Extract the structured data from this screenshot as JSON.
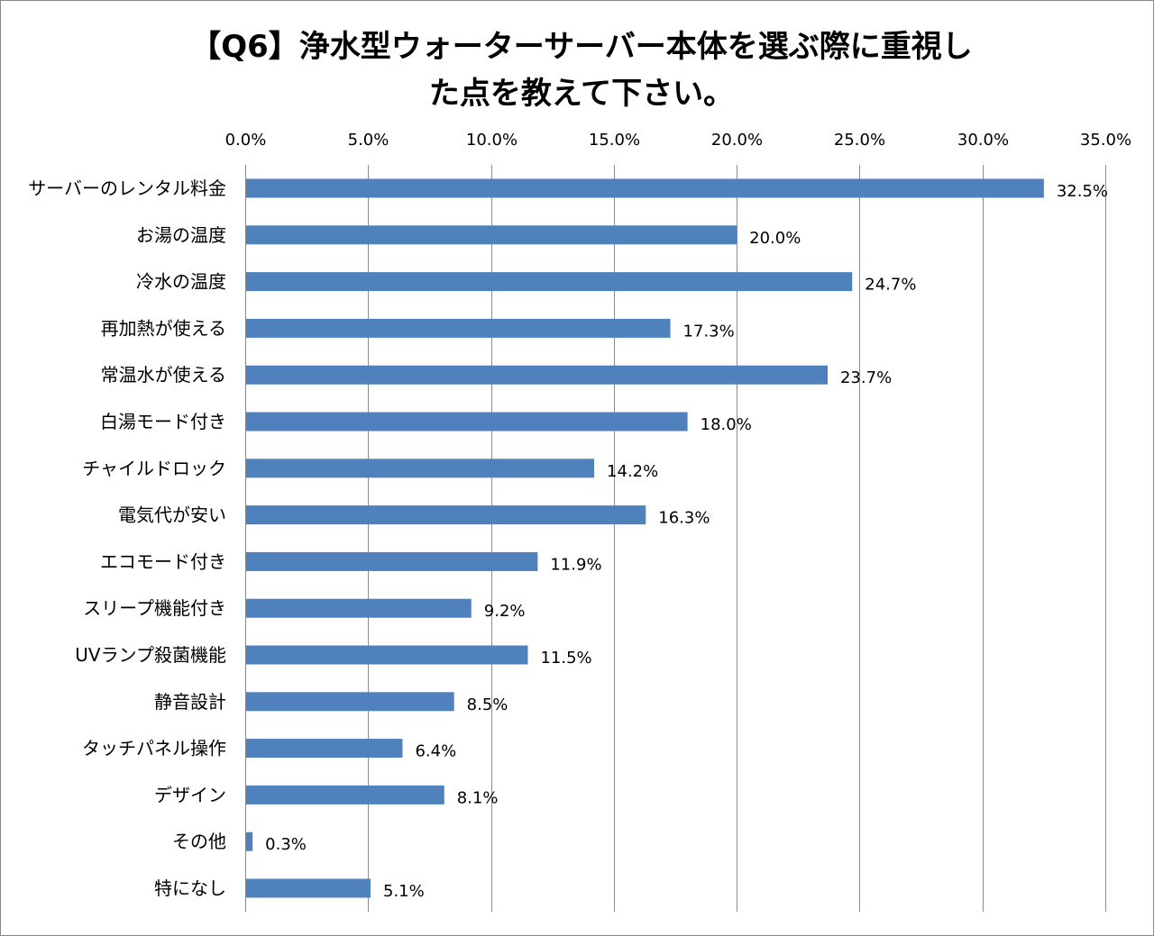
{
  "chart_data": {
    "type": "bar",
    "orientation": "horizontal",
    "title_lines": [
      "【Q6】浄水型ウォーターサーバー本体を選ぶ際に重視し",
      "た点を教えて下さい。"
    ],
    "xlabel": "",
    "ylabel": "",
    "xlim": [
      0,
      35
    ],
    "x_ticks": [
      "0.0%",
      "5.0%",
      "10.0%",
      "15.0%",
      "20.0%",
      "25.0%",
      "30.0%",
      "35.0%"
    ],
    "x_axis_position": "top",
    "grid": true,
    "legend": "none",
    "bar_color": "#4f81bd",
    "categories": [
      "サーバーのレンタル料金",
      "お湯の温度",
      "冷水の温度",
      "再加熱が使える",
      "常温水が使える",
      "白湯モード付き",
      "チャイルドロック",
      "電気代が安い",
      "エコモード付き",
      "スリープ機能付き",
      "UVランプ殺菌機能",
      "静音設計",
      "タッチパネル操作",
      "デザイン",
      "その他",
      "特になし"
    ],
    "values": [
      32.5,
      20.0,
      24.7,
      17.3,
      23.7,
      18.0,
      14.2,
      16.3,
      11.9,
      9.2,
      11.5,
      8.5,
      6.4,
      8.1,
      0.3,
      5.1
    ],
    "data_labels": [
      "32.5%",
      "20.0%",
      "24.7%",
      "17.3%",
      "23.7%",
      "18.0%",
      "14.2%",
      "16.3%",
      "11.9%",
      "9.2%",
      "11.5%",
      "8.5%",
      "6.4%",
      "8.1%",
      "0.3%",
      "5.1%"
    ]
  }
}
